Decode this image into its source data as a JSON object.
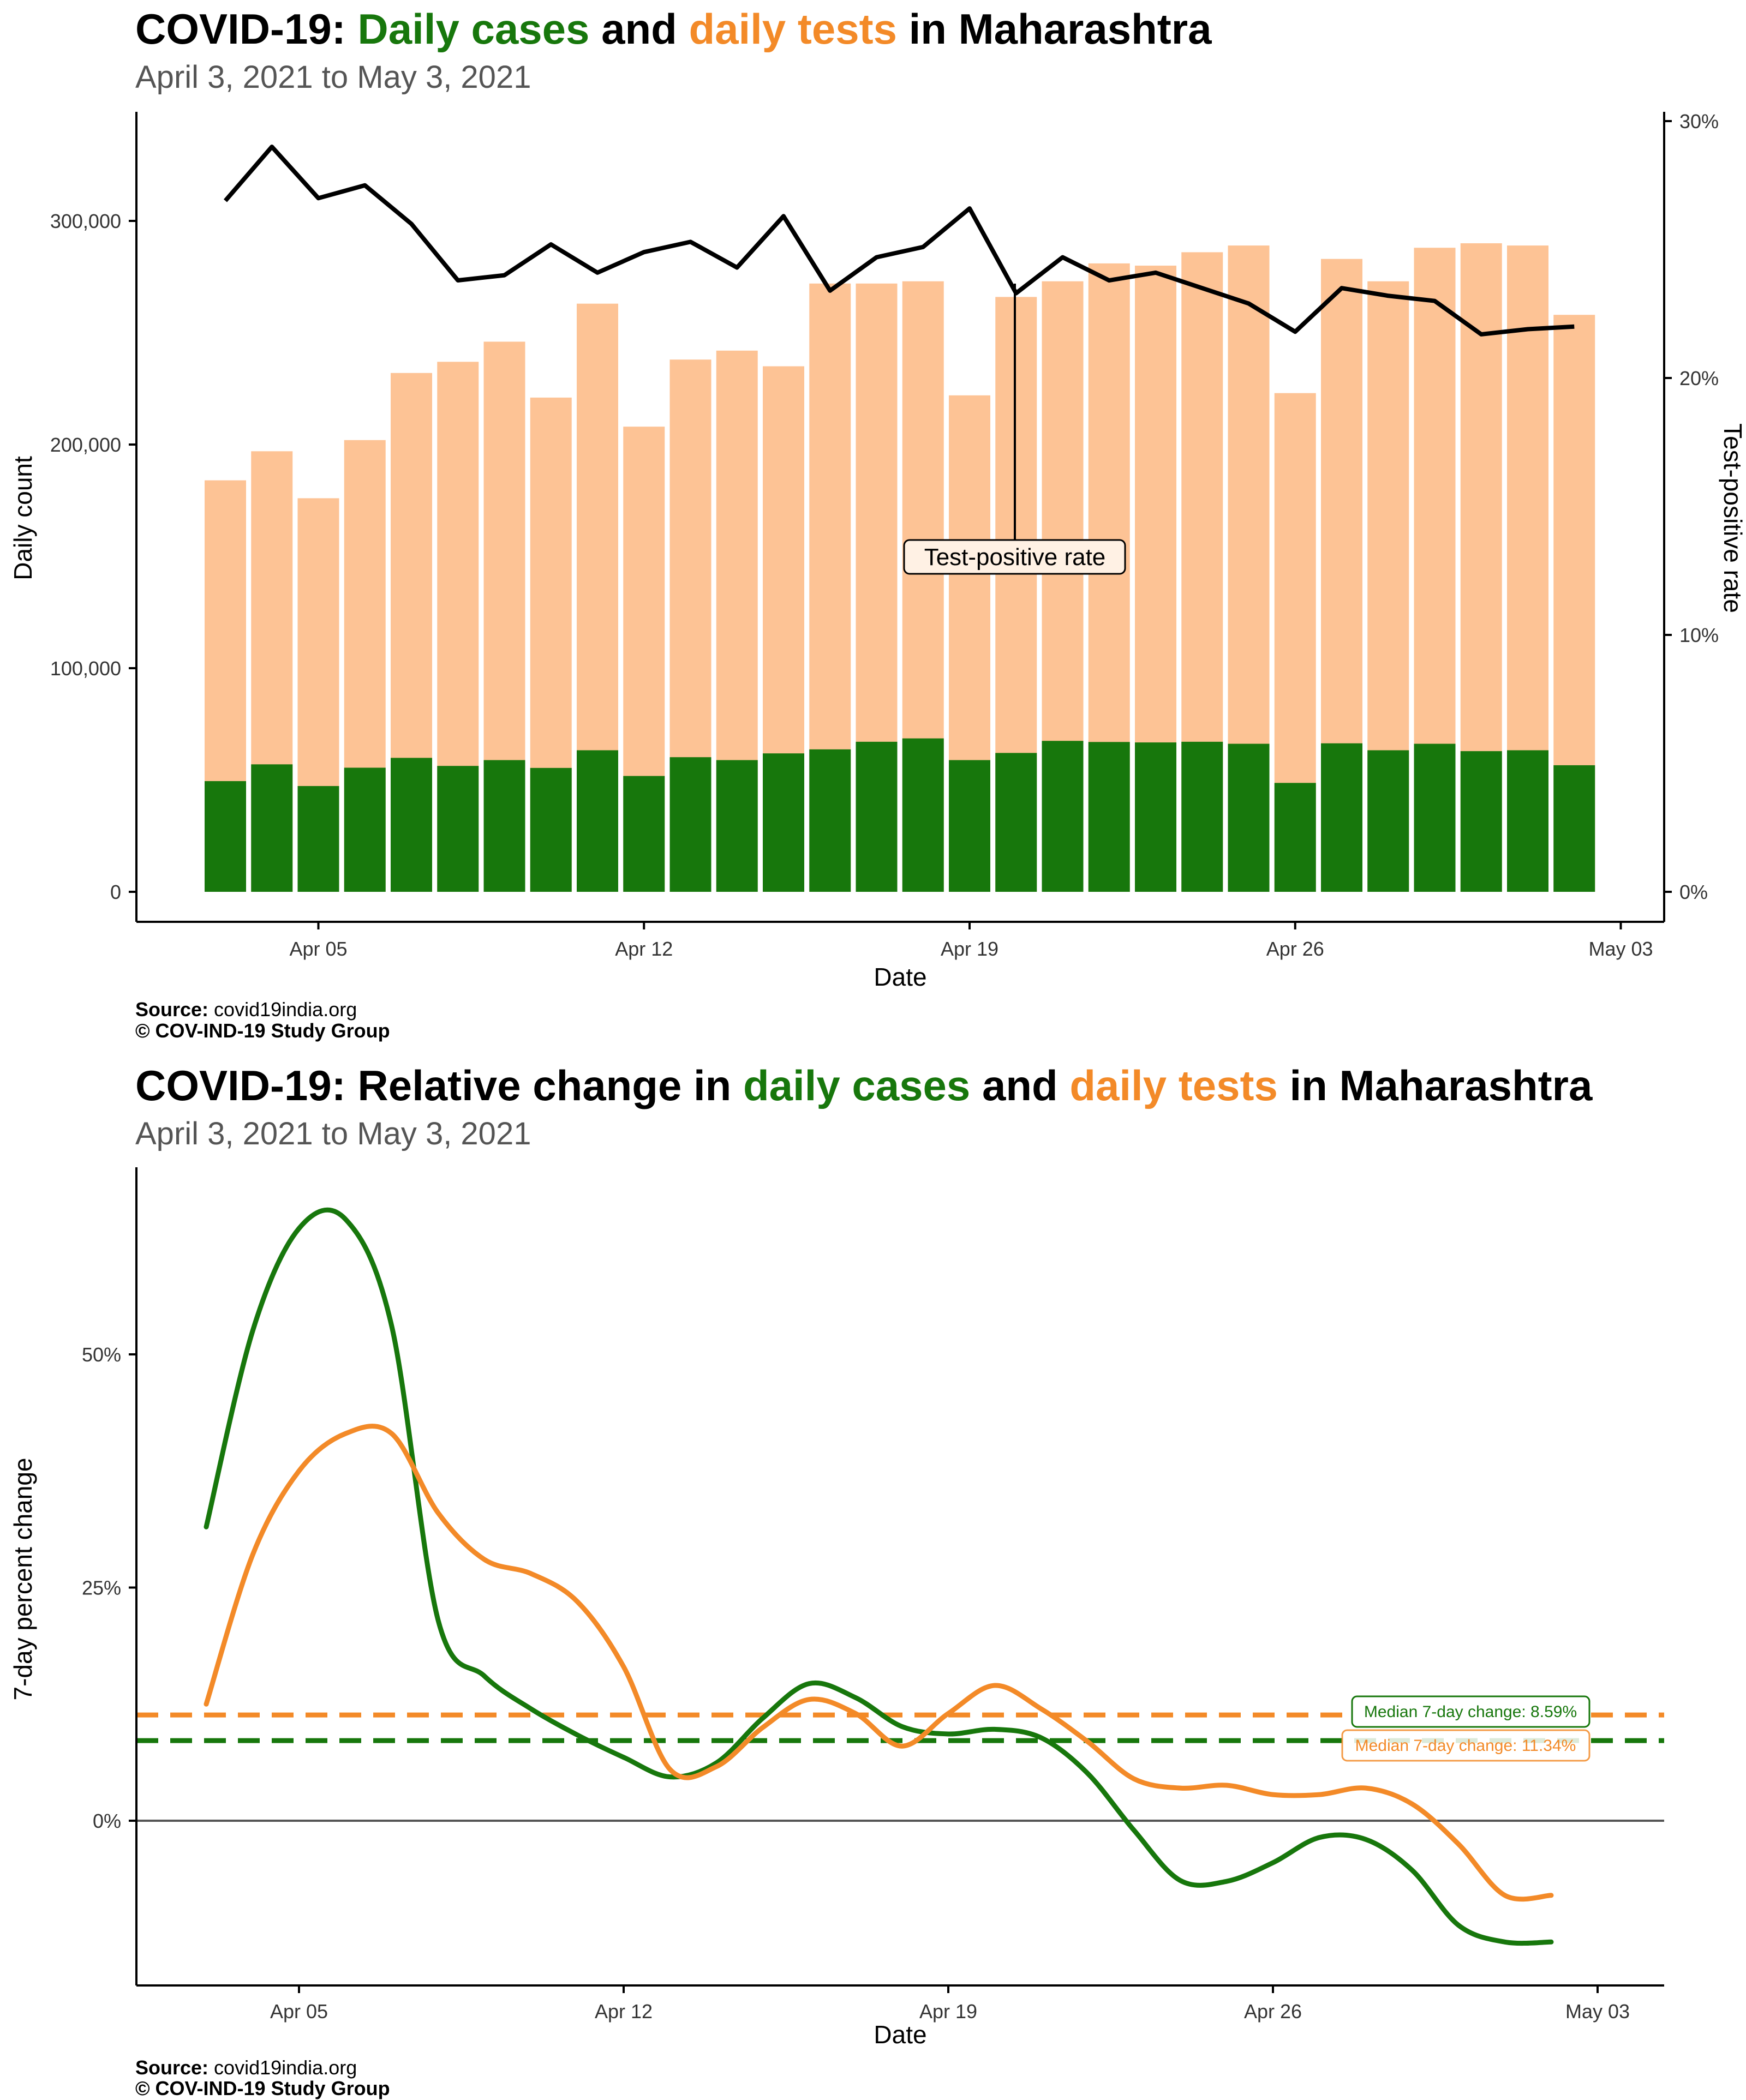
{
  "colors": {
    "cases": "#17770C",
    "tests": "#F38A28",
    "tests_bar": "#FDC395",
    "tpr": "#000000",
    "zero_line": "#555555"
  },
  "chart1": {
    "title": {
      "prefix": "COVID-19: ",
      "cases": "Daily cases",
      "mid": " and ",
      "tests": "daily tests",
      "suffix": " in Maharashtra"
    },
    "subtitle": "April  3, 2021 to May  3, 2021",
    "source_label": "Source:",
    "source_value": " covid19india.org",
    "copyright": "© COV-IND-19 Study Group",
    "xlabel": "Date",
    "ylabel": "Daily count",
    "ylabel_right": "Test-positive rate",
    "annotation": "Test-positive rate",
    "y_ticks": [
      "0",
      "100,000",
      "200,000",
      "300,000"
    ],
    "y_right_ticks": [
      "0%",
      "10%",
      "20%",
      "30%"
    ],
    "x_ticks": [
      "Apr 05",
      "Apr 12",
      "Apr 19",
      "Apr 26",
      "May 03"
    ]
  },
  "chart2": {
    "title": {
      "prefix": "COVID-19: Relative change in ",
      "cases": "daily cases",
      "mid": " and ",
      "tests": "daily tests",
      "suffix": " in Maharashtra"
    },
    "subtitle": "April  3, 2021 to May  3, 2021",
    "source_label": "Source:",
    "source_value": " covid19india.org",
    "copyright": "© COV-IND-19 Study Group",
    "xlabel": "Date",
    "ylabel": "7-day percent change",
    "y_ticks": [
      "0%",
      "25%",
      "50%"
    ],
    "x_ticks": [
      "Apr 05",
      "Apr 12",
      "Apr 19",
      "Apr 26",
      "May 03"
    ],
    "median_cases_label": "Median 7-day change: 8.59%",
    "median_tests_label": "Median 7-day change: 11.34%"
  },
  "chart_data": [
    {
      "type": "bar",
      "title": "COVID-19: Daily cases and daily tests in Maharashtra",
      "subtitle": "April  3, 2021 to May  3, 2021",
      "xlabel": "Date",
      "ylabel": "Daily count",
      "ylabel_right": "Test-positive rate",
      "ylim": [
        0,
        350000
      ],
      "y2lim": [
        0,
        30
      ],
      "dates": [
        "2021-04-03",
        "2021-04-04",
        "2021-04-05",
        "2021-04-06",
        "2021-04-07",
        "2021-04-08",
        "2021-04-09",
        "2021-04-10",
        "2021-04-11",
        "2021-04-12",
        "2021-04-13",
        "2021-04-14",
        "2021-04-15",
        "2021-04-16",
        "2021-04-17",
        "2021-04-18",
        "2021-04-19",
        "2021-04-20",
        "2021-04-21",
        "2021-04-22",
        "2021-04-23",
        "2021-04-24",
        "2021-04-25",
        "2021-04-26",
        "2021-04-27",
        "2021-04-28",
        "2021-04-29",
        "2021-04-30",
        "2021-05-01",
        "2021-05-02"
      ],
      "series": [
        {
          "name": "Daily tests",
          "values": [
            184000,
            197000,
            176000,
            202000,
            232000,
            237000,
            246000,
            221000,
            263000,
            208000,
            238000,
            242000,
            235000,
            272000,
            272000,
            273000,
            222000,
            266000,
            273000,
            281000,
            280000,
            286000,
            289000,
            223000,
            283000,
            273000,
            288000,
            290000,
            289000,
            258000
          ]
        },
        {
          "name": "Daily cases",
          "values": [
            49500,
            57000,
            47300,
            55500,
            59900,
            56300,
            58900,
            55400,
            63300,
            51800,
            60200,
            58900,
            61900,
            63700,
            67100,
            68600,
            58900,
            62100,
            67500,
            67000,
            66800,
            67100,
            66200,
            48700,
            66400,
            63300,
            66200,
            62900,
            63300,
            56600
          ]
        },
        {
          "name": "Test-positive rate",
          "unit": "%",
          "values": [
            26.9,
            29.0,
            27.0,
            27.5,
            26.0,
            23.8,
            24.0,
            25.2,
            24.1,
            24.9,
            25.3,
            24.3,
            26.3,
            23.4,
            24.7,
            25.1,
            26.6,
            23.3,
            24.7,
            23.8,
            24.1,
            23.5,
            22.9,
            21.8,
            23.5,
            23.2,
            23.0,
            21.7,
            21.9,
            22.0
          ]
        }
      ]
    },
    {
      "type": "line",
      "title": "COVID-19: Relative change in daily cases and daily tests in Maharashtra",
      "subtitle": "April  3, 2021 to May  3, 2021",
      "xlabel": "Date",
      "ylabel": "7-day percent change",
      "ylim": [
        -12,
        67
      ],
      "x": [
        3,
        4,
        5,
        6,
        7,
        8,
        9,
        10,
        11,
        12,
        13,
        14,
        15,
        16,
        17,
        18,
        19,
        20,
        21,
        22,
        23,
        24,
        25,
        26,
        27,
        28,
        29,
        30,
        31,
        32
      ],
      "series": [
        {
          "name": "daily cases",
          "values": [
            31.5,
            52.5,
            63.5,
            64.5,
            53.0,
            21.5,
            15.5,
            12.0,
            9.2,
            6.8,
            4.7,
            6.2,
            11.0,
            14.7,
            13.2,
            10.1,
            9.3,
            9.8,
            8.9,
            5.1,
            -1.0,
            -6.4,
            -6.5,
            -4.5,
            -1.8,
            -2.0,
            -5.3,
            -11.2,
            -13.0,
            -13.0
          ],
          "median": 8.59
        },
        {
          "name": "daily tests",
          "values": [
            12.5,
            28.5,
            37.5,
            41.5,
            41.5,
            33.0,
            28.0,
            26.5,
            23.5,
            16.5,
            5.5,
            5.8,
            10.0,
            13.0,
            11.5,
            8.0,
            11.5,
            14.5,
            12.0,
            8.5,
            4.5,
            3.5,
            3.8,
            2.8,
            2.8,
            3.5,
            1.8,
            -2.5,
            -8.0,
            -8.0
          ],
          "median": 11.34
        }
      ]
    }
  ]
}
